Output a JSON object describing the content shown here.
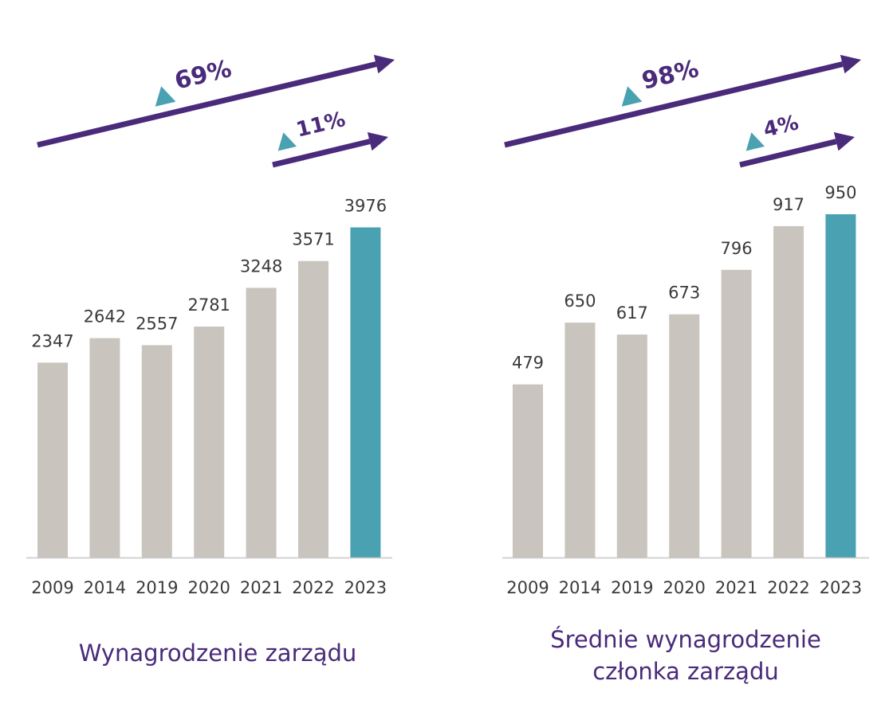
{
  "colors": {
    "bar": "#c9c4be",
    "highlight": "#4aa1b1",
    "arrow": "#4a2a7a",
    "triangle": "#4aa1b1",
    "axis": "#c8c8c8"
  },
  "chart_data": [
    {
      "type": "bar",
      "title": "Wynagrodzenie zarządu",
      "title_lines": [
        "Wynagrodzenie zarządu"
      ],
      "categories": [
        "2009",
        "2014",
        "2019",
        "2020",
        "2021",
        "2022",
        "2023"
      ],
      "values": [
        2347,
        2642,
        2557,
        2781,
        3248,
        3571,
        3976
      ],
      "highlight_index": 6,
      "ylim": [
        0,
        4000
      ],
      "grid": false,
      "growth": {
        "long": {
          "label": "69%"
        },
        "short": {
          "label": "11%"
        }
      }
    },
    {
      "type": "bar",
      "title": "Średnie wynagrodzenie członka zarządu",
      "title_lines": [
        "Średnie wynagrodzenie",
        "członka zarządu"
      ],
      "categories": [
        "2009",
        "2014",
        "2019",
        "2020",
        "2021",
        "2022",
        "2023"
      ],
      "values": [
        479,
        650,
        617,
        673,
        796,
        917,
        950
      ],
      "highlight_index": 6,
      "ylim": [
        0,
        950
      ],
      "grid": false,
      "growth": {
        "long": {
          "label": "98%"
        },
        "short": {
          "label": "4%"
        }
      }
    }
  ]
}
